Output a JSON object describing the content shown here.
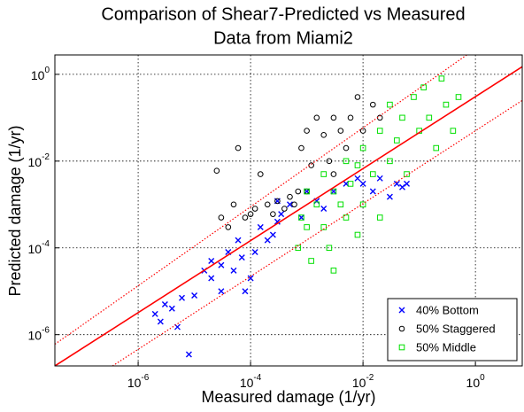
{
  "chart_data": {
    "type": "scatter",
    "title_lines": [
      "Comparison of Shear7-Predicted vs Measured",
      "Data from Miami2"
    ],
    "xlabel": "Measured damage (1/yr)",
    "ylabel": "Predicted damage (1/yr)",
    "xscale": "log",
    "yscale": "log",
    "grid": true,
    "legend": "lower right",
    "xlim": [
      3.3e-08,
      6.8
    ],
    "ylim": [
      1.9e-07,
      2.8
    ],
    "xticks": [
      {
        "value": 1e-06,
        "label": "10^-6"
      },
      {
        "value": 0.0001,
        "label": "10^-4"
      },
      {
        "value": 0.01,
        "label": "10^-2"
      },
      {
        "value": 1,
        "label": "10^0"
      }
    ],
    "yticks": [
      {
        "value": 1e-06,
        "label": "10^-6"
      },
      {
        "value": 0.0001,
        "label": "10^-4"
      },
      {
        "value": 0.01,
        "label": "10^-2"
      },
      {
        "value": 1,
        "label": "10^0"
      }
    ],
    "lines": [
      {
        "color": "#ff0000",
        "dash": "solid",
        "x": [
          3.3e-08,
          6.8
        ],
        "values": [
          1.9e-07,
          1.5
        ]
      },
      {
        "color": "#ff0000",
        "dash": "dotted",
        "x": [
          3.3e-08,
          0.7
        ],
        "values": [
          6e-07,
          2.8
        ]
      },
      {
        "color": "#ff0000",
        "dash": "dotted",
        "x": [
          3.5e-07,
          6.8
        ],
        "values": [
          1.9e-07,
          0.25
        ]
      }
    ],
    "series": [
      {
        "name": "40% Bottom",
        "color": "#0000ff",
        "marker": "x",
        "x": [
          2e-06,
          2.5e-06,
          3e-06,
          4e-06,
          5e-06,
          6e-06,
          8e-06,
          1e-05,
          1.5e-05,
          2e-05,
          2e-05,
          3e-05,
          3e-05,
          4e-05,
          5e-05,
          6e-05,
          7e-05,
          8e-05,
          0.0001,
          0.00012,
          0.00015,
          0.0002,
          0.00025,
          0.0003,
          0.00035,
          0.0003,
          0.0005,
          0.0008,
          0.001,
          0.0015,
          0.002,
          0.003,
          0.005,
          0.008,
          0.01,
          0.015,
          0.02,
          0.03,
          0.04,
          0.05,
          0.06
        ],
        "values": [
          3e-06,
          2e-06,
          5e-06,
          4e-06,
          1.5e-06,
          7e-06,
          3.5e-07,
          8e-06,
          3e-05,
          5e-05,
          2e-05,
          4e-05,
          1e-05,
          8e-05,
          3e-05,
          0.00015,
          6e-05,
          1e-05,
          2e-05,
          8e-05,
          0.0003,
          0.00015,
          0.0002,
          0.0004,
          0.0006,
          0.0012,
          0.001,
          0.0005,
          0.002,
          0.0012,
          0.0008,
          0.002,
          0.003,
          0.004,
          0.003,
          0.002,
          0.004,
          0.0015,
          0.003,
          0.0025,
          0.003
        ]
      },
      {
        "name": "50% Staggered",
        "color": "#000000",
        "marker": "o",
        "x": [
          2.5e-05,
          3e-05,
          4e-05,
          5e-05,
          6e-05,
          8e-05,
          0.0001,
          0.00012,
          0.00015,
          0.0002,
          0.00025,
          0.0003,
          0.0004,
          0.0005,
          0.0006,
          0.0008,
          0.001,
          0.0012,
          0.0015,
          0.002,
          0.0025,
          0.003,
          0.004,
          0.005,
          0.006,
          0.008,
          0.01,
          0.015,
          0.02,
          0.003,
          0.0007,
          0.001
        ],
        "values": [
          0.006,
          0.0005,
          0.0003,
          0.001,
          0.02,
          0.0005,
          0.0006,
          0.0008,
          0.005,
          0.001,
          0.0006,
          0.0012,
          0.0008,
          0.0015,
          0.001,
          0.02,
          0.05,
          0.008,
          0.1,
          0.04,
          0.01,
          0.1,
          0.05,
          0.02,
          0.1,
          0.3,
          0.05,
          0.2,
          0.1,
          0.005,
          0.002,
          0.002
        ]
      },
      {
        "name": "50% Middle",
        "color": "#00e000",
        "marker": "s",
        "x": [
          0.0007,
          0.0008,
          0.001,
          0.001,
          0.0012,
          0.0015,
          0.002,
          0.002,
          0.0025,
          0.003,
          0.003,
          0.004,
          0.005,
          0.005,
          0.006,
          0.008,
          0.008,
          0.01,
          0.01,
          0.015,
          0.02,
          0.02,
          0.03,
          0.03,
          0.04,
          0.05,
          0.06,
          0.08,
          0.1,
          0.12,
          0.15,
          0.2,
          0.25,
          0.3,
          0.4,
          0.5
        ],
        "values": [
          0.0001,
          0.0005,
          0.0003,
          0.002,
          5e-05,
          0.001,
          0.0003,
          0.005,
          0.0001,
          0.002,
          3e-05,
          0.001,
          0.0005,
          0.01,
          0.003,
          0.0002,
          0.008,
          0.02,
          0.001,
          0.005,
          0.05,
          0.0005,
          0.01,
          0.2,
          0.03,
          0.1,
          0.005,
          0.3,
          0.05,
          0.5,
          0.1,
          0.02,
          0.8,
          0.2,
          0.05,
          0.3
        ]
      }
    ]
  }
}
